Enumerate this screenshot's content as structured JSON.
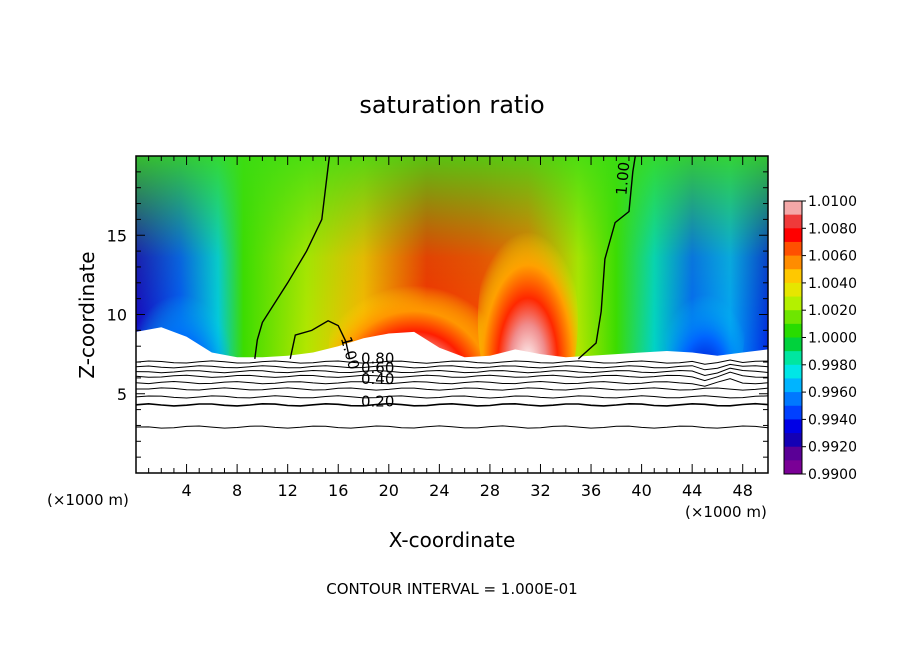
{
  "chart_data": {
    "type": "heatmap",
    "title": "saturation ratio",
    "xlabel": "X-coordinate",
    "ylabel": "Z-coordinate",
    "x_unit": "(×1000 m)",
    "z_unit": "(×1000 m)",
    "xlim": [
      0,
      50
    ],
    "ylim": [
      0,
      20
    ],
    "x_ticks": [
      4,
      8,
      12,
      16,
      20,
      24,
      28,
      32,
      36,
      40,
      44,
      48
    ],
    "y_ticks": [
      5,
      10,
      15
    ],
    "colorbar": {
      "ticks": [
        "1.0100",
        "1.0080",
        "1.0060",
        "1.0040",
        "1.0020",
        "1.0000",
        "0.9980",
        "0.9960",
        "0.9940",
        "0.9920",
        "0.9900"
      ],
      "colors": [
        "#f4a8a8",
        "#ef3a3a",
        "#ff0000",
        "#ff5000",
        "#ff8c00",
        "#ffc800",
        "#e6e600",
        "#b4f000",
        "#6ee600",
        "#28dc00",
        "#00d23c",
        "#00e6a0",
        "#00e6e6",
        "#00b4ff",
        "#0078ff",
        "#0040ff",
        "#0000e6",
        "#1400b4",
        "#5a0096",
        "#7a0096"
      ]
    },
    "contour_interval": "CONTOUR INTERVAL = 1.000E-01",
    "contour_labels": [
      "1.00",
      "1.00",
      "0.80",
      "0.60",
      "0.40",
      "0.20"
    ],
    "cloud_top_z": [
      8.9,
      9.2,
      8.6,
      7.6,
      7.3,
      7.3,
      7.4,
      7.6,
      8.0,
      8.5,
      8.8,
      8.9,
      7.9,
      7.3,
      7.4,
      7.8,
      7.5,
      7.3,
      7.4,
      7.5,
      7.6,
      7.7,
      7.6,
      7.4,
      7.6,
      7.8
    ]
  }
}
